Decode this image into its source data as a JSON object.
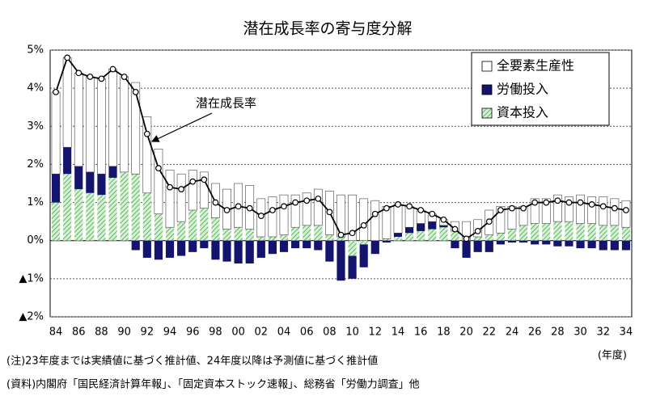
{
  "chart_data": {
    "type": "stacked-bar-line",
    "title": "潜在成長率の寄与度分解",
    "categories": [
      "84",
      null,
      "86",
      null,
      "88",
      null,
      "90",
      null,
      "92",
      null,
      "94",
      null,
      "96",
      null,
      "98",
      null,
      "00",
      null,
      "02",
      null,
      "04",
      null,
      "06",
      null,
      "08",
      null,
      "10",
      null,
      "12",
      null,
      "14",
      null,
      "16",
      null,
      "18",
      null,
      "20",
      null,
      "22",
      null,
      "24",
      null,
      "26",
      null,
      "28",
      null,
      "30",
      null,
      "32",
      null,
      "34"
    ],
    "series": [
      {
        "name": "資本投入",
        "color": "#5fb85f",
        "values": [
          1.0,
          1.75,
          1.35,
          1.25,
          1.2,
          1.65,
          1.8,
          1.75,
          1.25,
          0.7,
          0.35,
          0.5,
          0.8,
          0.85,
          0.6,
          0.3,
          0.35,
          0.3,
          0.1,
          0.1,
          0.15,
          0.35,
          0.4,
          0.4,
          0.15,
          0.1,
          -0.4,
          -0.1,
          0.0,
          0.05,
          0.1,
          0.2,
          0.25,
          0.3,
          0.35,
          0.25,
          0.0,
          0.1,
          0.15,
          0.2,
          0.3,
          0.4,
          0.45,
          0.45,
          0.5,
          0.5,
          0.45,
          0.45,
          0.4,
          0.4,
          0.35
        ]
      },
      {
        "name": "労働投入",
        "color": "#14146e",
        "values": [
          0.75,
          0.7,
          0.6,
          0.55,
          0.55,
          0.3,
          0.0,
          -0.25,
          -0.45,
          -0.5,
          -0.45,
          -0.4,
          -0.3,
          -0.2,
          -0.5,
          -0.55,
          -0.6,
          -0.6,
          -0.45,
          -0.35,
          -0.3,
          -0.2,
          -0.2,
          -0.25,
          -0.55,
          -1.05,
          -0.6,
          -0.6,
          -0.35,
          -0.05,
          0.1,
          0.15,
          0.2,
          0.2,
          0.05,
          -0.2,
          -0.45,
          -0.3,
          -0.3,
          -0.1,
          -0.05,
          -0.05,
          -0.1,
          -0.1,
          -0.15,
          -0.15,
          -0.2,
          -0.2,
          -0.25,
          -0.25,
          -0.25
        ]
      },
      {
        "name": "全要素生産性",
        "color": "#ffffff",
        "values": [
          2.15,
          2.35,
          2.45,
          2.5,
          2.5,
          2.55,
          2.5,
          2.4,
          2.0,
          1.7,
          1.5,
          1.25,
          1.05,
          0.95,
          0.9,
          1.05,
          1.15,
          1.15,
          1.0,
          1.05,
          1.05,
          0.85,
          0.85,
          0.95,
          1.15,
          1.1,
          1.2,
          1.1,
          1.05,
          0.85,
          0.75,
          0.55,
          0.35,
          0.2,
          0.15,
          0.25,
          0.5,
          0.45,
          0.65,
          0.7,
          0.6,
          0.5,
          0.65,
          0.65,
          0.7,
          0.65,
          0.75,
          0.7,
          0.75,
          0.7,
          0.7
        ]
      }
    ],
    "line": {
      "name": "潜在成長率",
      "color": "#000000",
      "values": [
        3.9,
        4.8,
        4.4,
        4.3,
        4.25,
        4.5,
        4.3,
        3.9,
        2.8,
        1.9,
        1.4,
        1.35,
        1.55,
        1.6,
        1.0,
        0.8,
        0.9,
        0.85,
        0.65,
        0.8,
        0.9,
        1.0,
        1.05,
        1.1,
        0.75,
        0.15,
        0.2,
        0.4,
        0.7,
        0.85,
        0.95,
        0.9,
        0.8,
        0.7,
        0.55,
        0.3,
        0.05,
        0.25,
        0.5,
        0.8,
        0.85,
        0.85,
        1.0,
        1.0,
        1.05,
        1.0,
        1.0,
        0.95,
        0.9,
        0.85,
        0.8
      ]
    },
    "ylim": [
      -2,
      5
    ],
    "yticks": [
      {
        "value": 5,
        "label": "5%"
      },
      {
        "value": 4,
        "label": "4%"
      },
      {
        "value": 3,
        "label": "3%"
      },
      {
        "value": 2,
        "label": "2%"
      },
      {
        "value": 1,
        "label": "1%"
      },
      {
        "value": 0,
        "label": "0%"
      },
      {
        "value": -1,
        "label": "▲1%"
      },
      {
        "value": -2,
        "label": "▲2%"
      }
    ],
    "grid": true,
    "legend": "top-right",
    "x_label": "(年度)",
    "notes": [
      "(注)23年度までは実績値に基づく推計値、24年度以降は予測値に基づく推計値",
      "(資料)内閣府「国民経済計算年報」、「固定資本ストック速報」、総務省「労働力調査」他"
    ]
  }
}
